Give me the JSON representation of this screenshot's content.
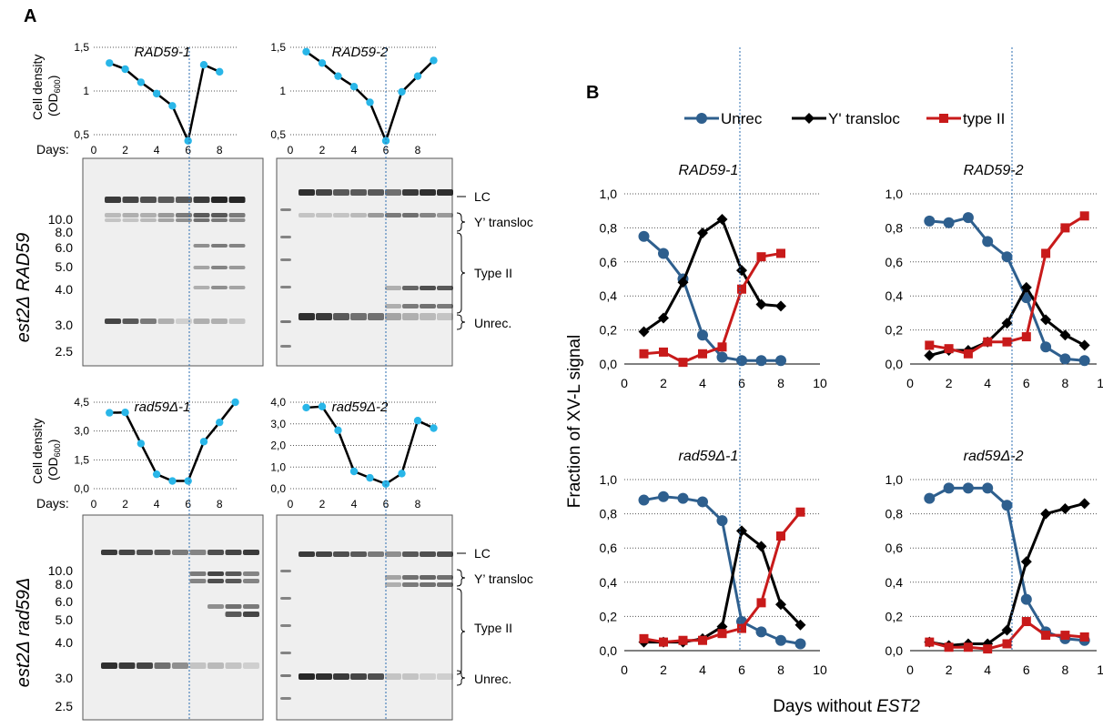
{
  "panels": {
    "A": "A",
    "B": "B"
  },
  "panel_a": {
    "ylabel_top": "Cell density",
    "ylabel_sub": "(OD",
    "ylabel_subscript": "600",
    "ylabel_close": ")",
    "days_label": "Days:",
    "row_labels": [
      "est2Δ RAD59",
      "est2Δ rad59Δ"
    ],
    "ladder_rows": [
      [
        "10.0",
        "8.0",
        "6.0",
        "5.0",
        "4.0",
        "3.0",
        "2.5"
      ],
      [
        "10.0",
        "8.0",
        "6.0",
        "5.0",
        "4.0",
        "3.0",
        "2.5"
      ]
    ],
    "band_labels": [
      "LC",
      "Y’ transloc",
      "Type II",
      "Unrec."
    ],
    "gel_colors": {
      "background": "#efefef",
      "band": "#1a1a1a"
    }
  },
  "chart_data": [
    {
      "type": "line",
      "title": "RAD59-1",
      "x": [
        1,
        2,
        3,
        4,
        5,
        6,
        7,
        8
      ],
      "series": [
        {
          "values": [
            1.32,
            1.25,
            1.1,
            0.97,
            0.83,
            0.43,
            1.3,
            1.22
          ]
        }
      ],
      "xticks": [
        0,
        2,
        4,
        6,
        8
      ],
      "yticks": [
        "0,5",
        "1",
        "1,5"
      ],
      "ylim": [
        0.3,
        1.5
      ],
      "marker_color": "#29b6e8"
    },
    {
      "type": "line",
      "title": "RAD59-2",
      "x": [
        1,
        2,
        3,
        4,
        5,
        6,
        7,
        8,
        9
      ],
      "series": [
        {
          "values": [
            1.45,
            1.32,
            1.17,
            1.05,
            0.87,
            0.43,
            0.99,
            1.17,
            1.35
          ]
        }
      ],
      "xticks": [
        0,
        2,
        4,
        6,
        8
      ],
      "yticks": [
        "0,5",
        "1",
        "1,5"
      ],
      "ylim": [
        0.3,
        1.5
      ],
      "marker_color": "#29b6e8"
    },
    {
      "type": "line",
      "title": "rad59Δ-1",
      "x": [
        1,
        2,
        3,
        4,
        5,
        6,
        7,
        8,
        9
      ],
      "series": [
        {
          "values": [
            3.95,
            3.97,
            2.35,
            0.75,
            0.4,
            0.4,
            2.45,
            3.45,
            4.5
          ]
        }
      ],
      "xticks": [
        0,
        2,
        4,
        6,
        8
      ],
      "yticks": [
        "0,0",
        "1,5",
        "3,0",
        "4,5"
      ],
      "ylim": [
        0,
        4.5
      ],
      "marker_color": "#29b6e8"
    },
    {
      "type": "line",
      "title": "rad59Δ-2",
      "x": [
        1,
        2,
        3,
        4,
        5,
        6,
        7,
        8,
        9
      ],
      "series": [
        {
          "values": [
            3.75,
            3.8,
            2.7,
            0.8,
            0.5,
            0.22,
            0.7,
            3.15,
            2.8
          ]
        }
      ],
      "xticks": [
        0,
        2,
        4,
        6,
        8
      ],
      "yticks": [
        "0,0",
        "1,0",
        "2,0",
        "3,0",
        "4,0"
      ],
      "ylim": [
        0,
        4.0
      ],
      "marker_color": "#29b6e8"
    },
    {
      "type": "line",
      "title": "RAD59-1",
      "x": [
        1,
        2,
        3,
        4,
        5,
        6,
        7,
        8
      ],
      "series": [
        {
          "name": "Unrec",
          "values": [
            0.75,
            0.65,
            0.5,
            0.17,
            0.04,
            0.02,
            0.02,
            0.02
          ]
        },
        {
          "name": "Y' transloc",
          "values": [
            0.19,
            0.27,
            0.48,
            0.77,
            0.85,
            0.55,
            0.35,
            0.34
          ]
        },
        {
          "name": "type II",
          "values": [
            0.06,
            0.07,
            0.01,
            0.06,
            0.1,
            0.44,
            0.63,
            0.65
          ]
        }
      ],
      "xticks": [
        0,
        2,
        4,
        6,
        8,
        10
      ],
      "yticks": [
        "0,0",
        "0,2",
        "0,4",
        "0,6",
        "0,8",
        "1,0"
      ],
      "ylim": [
        0,
        1
      ]
    },
    {
      "type": "line",
      "title": "RAD59-2",
      "x": [
        1,
        2,
        3,
        4,
        5,
        6,
        7,
        8,
        9
      ],
      "series": [
        {
          "name": "Unrec",
          "values": [
            0.84,
            0.83,
            0.86,
            0.72,
            0.63,
            0.39,
            0.1,
            0.03,
            0.02
          ]
        },
        {
          "name": "Y' transloc",
          "values": [
            0.05,
            0.08,
            0.08,
            0.13,
            0.24,
            0.45,
            0.26,
            0.17,
            0.11
          ]
        },
        {
          "name": "type II",
          "values": [
            0.11,
            0.09,
            0.06,
            0.13,
            0.13,
            0.16,
            0.65,
            0.8,
            0.87
          ]
        }
      ],
      "xticks": [
        0,
        2,
        4,
        6,
        8,
        10
      ],
      "yticks": [
        "0,0",
        "0,2",
        "0,4",
        "0,6",
        "0,8",
        "1,0"
      ],
      "ylim": [
        0,
        1
      ]
    },
    {
      "type": "line",
      "title": "rad59Δ-1",
      "x": [
        1,
        2,
        3,
        4,
        5,
        6,
        7,
        8,
        9
      ],
      "series": [
        {
          "name": "Unrec",
          "values": [
            0.88,
            0.9,
            0.89,
            0.87,
            0.76,
            0.17,
            0.11,
            0.06,
            0.04
          ]
        },
        {
          "name": "Y' transloc",
          "values": [
            0.05,
            0.05,
            0.05,
            0.07,
            0.14,
            0.7,
            0.61,
            0.27,
            0.15
          ]
        },
        {
          "name": "type II",
          "values": [
            0.07,
            0.05,
            0.06,
            0.06,
            0.1,
            0.13,
            0.28,
            0.67,
            0.81
          ]
        }
      ],
      "xticks": [
        0,
        2,
        4,
        6,
        8,
        10
      ],
      "yticks": [
        "0,0",
        "0,2",
        "0,4",
        "0,6",
        "0,8",
        "1,0"
      ],
      "ylim": [
        0,
        1
      ]
    },
    {
      "type": "line",
      "title": "rad59Δ-2",
      "x": [
        1,
        2,
        3,
        4,
        5,
        6,
        7,
        8,
        9
      ],
      "series": [
        {
          "name": "Unrec",
          "values": [
            0.89,
            0.95,
            0.95,
            0.95,
            0.85,
            0.3,
            0.11,
            0.07,
            0.06
          ]
        },
        {
          "name": "Y' transloc",
          "values": [
            0.05,
            0.03,
            0.04,
            0.04,
            0.12,
            0.52,
            0.8,
            0.83,
            0.86
          ]
        },
        {
          "name": "type II",
          "values": [
            0.05,
            0.02,
            0.02,
            0.01,
            0.04,
            0.17,
            0.09,
            0.09,
            0.08
          ]
        }
      ],
      "xticks": [
        0,
        2,
        4,
        6,
        8,
        10
      ],
      "yticks": [
        "0,0",
        "0,2",
        "0,4",
        "0,6",
        "0,8",
        "1,0"
      ],
      "ylim": [
        0,
        1
      ]
    }
  ],
  "panel_b": {
    "legend": [
      {
        "name": "Unrec",
        "color": "#2e5f8e",
        "marker": "circle"
      },
      {
        "name": "Y' transloc",
        "color": "#000000",
        "marker": "diamond"
      },
      {
        "name": "type II",
        "color": "#c81a1a",
        "marker": "square"
      }
    ],
    "ylabel": "Fraction  of  XV-L  signal",
    "xlabel_pre": "Days  without  ",
    "xlabel_gene": "EST2"
  }
}
